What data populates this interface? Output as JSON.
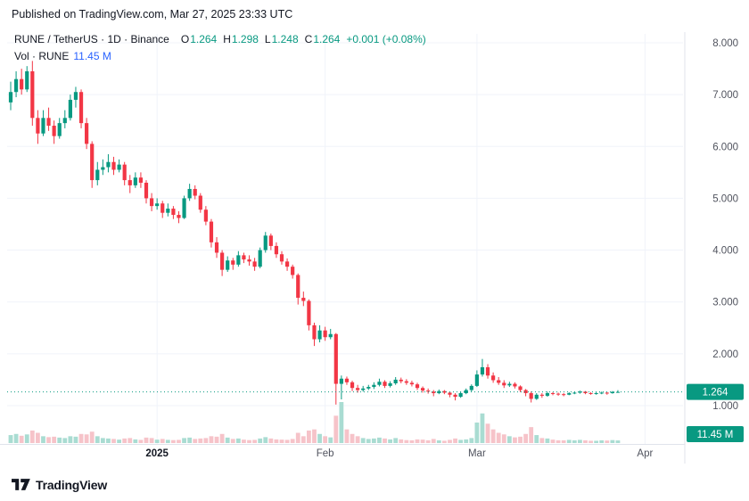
{
  "header": {
    "published": "Published on TradingView.com, Mar 27, 2025 23:33 UTC"
  },
  "legend": {
    "symbol": "RUNE / TetherUS · 1D · Binance",
    "ohlc": [
      {
        "label": "O",
        "value": "1.264"
      },
      {
        "label": "H",
        "value": "1.298"
      },
      {
        "label": "L",
        "value": "1.248"
      },
      {
        "label": "C",
        "value": "1.264"
      }
    ],
    "change": "+0.001 (+0.08%)",
    "vol_label": "Vol · RUNE",
    "vol_value": "11.45 M"
  },
  "axes": {
    "y_ticks": [
      "8.000",
      "7.000",
      "6.000",
      "5.000",
      "4.000",
      "3.000",
      "2.000",
      "1.000"
    ],
    "x_ticks": [
      {
        "label": "2025",
        "day": 27
      },
      {
        "label": "Feb",
        "day": 58
      },
      {
        "label": "Mar",
        "day": 86
      },
      {
        "label": "Apr",
        "day": 117
      }
    ]
  },
  "badges": {
    "price": "1.264",
    "volume": "11.45 M"
  },
  "footer": {
    "brand": "TradingView"
  },
  "colors": {
    "up": "#089981",
    "down": "#f23645",
    "vol_up": "#a9dcd2",
    "vol_down": "#f6c3c9",
    "accent": "#089981",
    "text": "#131722",
    "muted": "#50535e",
    "grid": "#f0f3fa",
    "axis_line": "#e0e3eb",
    "vol_text": "#2962ff",
    "badge_text": "#ffffff"
  },
  "chart_data": {
    "type": "candlestick",
    "title": "RUNE / TetherUS 1D Binance",
    "interval": "1D",
    "start_date": "2024-12-05",
    "end_date": "2025-03-27",
    "last_price": 1.264,
    "y_range": [
      1.0,
      8.0
    ],
    "volume_max_m": 180,
    "grid": true,
    "columns": [
      "open",
      "high",
      "low",
      "close",
      "volume_m"
    ],
    "candles": [
      [
        6.85,
        7.25,
        6.7,
        7.05,
        35
      ],
      [
        7.05,
        7.45,
        6.95,
        7.3,
        40
      ],
      [
        7.3,
        7.5,
        7.0,
        7.1,
        32
      ],
      [
        7.1,
        7.55,
        7.05,
        7.45,
        38
      ],
      [
        7.45,
        7.65,
        6.4,
        6.55,
        55
      ],
      [
        6.55,
        6.7,
        6.05,
        6.25,
        45
      ],
      [
        6.25,
        6.7,
        6.2,
        6.55,
        30
      ],
      [
        6.55,
        6.75,
        6.3,
        6.4,
        26
      ],
      [
        6.4,
        6.5,
        6.05,
        6.2,
        28
      ],
      [
        6.2,
        6.55,
        6.15,
        6.45,
        24
      ],
      [
        6.45,
        6.7,
        6.35,
        6.55,
        22
      ],
      [
        6.55,
        7.0,
        6.5,
        6.9,
        30
      ],
      [
        6.9,
        7.15,
        6.75,
        7.05,
        28
      ],
      [
        7.05,
        7.1,
        6.35,
        6.45,
        40
      ],
      [
        6.45,
        6.55,
        5.95,
        6.05,
        38
      ],
      [
        6.05,
        6.1,
        5.2,
        5.35,
        50
      ],
      [
        5.35,
        5.7,
        5.25,
        5.55,
        30
      ],
      [
        5.55,
        5.75,
        5.45,
        5.6,
        22
      ],
      [
        5.6,
        5.85,
        5.5,
        5.7,
        20
      ],
      [
        5.7,
        5.8,
        5.45,
        5.55,
        18
      ],
      [
        5.55,
        5.75,
        5.5,
        5.65,
        15
      ],
      [
        5.65,
        5.7,
        5.25,
        5.35,
        20
      ],
      [
        5.35,
        5.45,
        5.1,
        5.25,
        22
      ],
      [
        5.25,
        5.5,
        5.2,
        5.4,
        16
      ],
      [
        5.4,
        5.5,
        5.2,
        5.3,
        14
      ],
      [
        5.3,
        5.35,
        4.9,
        5.0,
        24
      ],
      [
        5.0,
        5.1,
        4.75,
        4.85,
        22
      ],
      [
        4.85,
        5.0,
        4.78,
        4.9,
        15
      ],
      [
        4.9,
        4.95,
        4.62,
        4.72,
        18
      ],
      [
        4.72,
        4.9,
        4.65,
        4.8,
        14
      ],
      [
        4.8,
        4.85,
        4.6,
        4.68,
        13
      ],
      [
        4.68,
        4.75,
        4.52,
        4.62,
        14
      ],
      [
        4.62,
        5.05,
        4.6,
        5.0,
        22
      ],
      [
        5.0,
        5.28,
        4.95,
        5.18,
        24
      ],
      [
        5.18,
        5.25,
        4.98,
        5.05,
        18
      ],
      [
        5.05,
        5.1,
        4.72,
        4.78,
        20
      ],
      [
        4.78,
        4.85,
        4.48,
        4.55,
        22
      ],
      [
        4.55,
        4.6,
        4.05,
        4.15,
        30
      ],
      [
        4.15,
        4.25,
        3.85,
        3.95,
        28
      ],
      [
        3.95,
        4.0,
        3.5,
        3.62,
        40
      ],
      [
        3.62,
        3.88,
        3.58,
        3.8,
        24
      ],
      [
        3.8,
        3.85,
        3.62,
        3.72,
        18
      ],
      [
        3.72,
        3.98,
        3.68,
        3.9,
        20
      ],
      [
        3.9,
        3.95,
        3.75,
        3.82,
        15
      ],
      [
        3.82,
        3.9,
        3.7,
        3.78,
        13
      ],
      [
        3.78,
        3.85,
        3.6,
        3.68,
        14
      ],
      [
        3.68,
        4.05,
        3.65,
        4.0,
        20
      ],
      [
        4.0,
        4.35,
        3.95,
        4.28,
        26
      ],
      [
        4.28,
        4.32,
        4.0,
        4.08,
        20
      ],
      [
        4.08,
        4.15,
        3.85,
        3.92,
        16
      ],
      [
        3.92,
        3.98,
        3.72,
        3.78,
        15
      ],
      [
        3.78,
        3.84,
        3.6,
        3.68,
        14
      ],
      [
        3.68,
        3.72,
        3.45,
        3.52,
        18
      ],
      [
        3.52,
        3.55,
        2.95,
        3.08,
        45
      ],
      [
        3.08,
        3.2,
        2.92,
        3.02,
        30
      ],
      [
        3.02,
        3.05,
        2.45,
        2.55,
        55
      ],
      [
        2.55,
        2.6,
        2.15,
        2.28,
        60
      ],
      [
        2.28,
        2.55,
        2.22,
        2.45,
        40
      ],
      [
        2.45,
        2.52,
        2.25,
        2.32,
        30
      ],
      [
        2.32,
        2.48,
        2.28,
        2.38,
        25
      ],
      [
        2.38,
        2.4,
        1.02,
        1.42,
        120
      ],
      [
        1.42,
        1.58,
        1.12,
        1.52,
        180
      ],
      [
        1.52,
        1.56,
        1.4,
        1.45,
        60
      ],
      [
        1.45,
        1.48,
        1.28,
        1.34,
        40
      ],
      [
        1.34,
        1.4,
        1.25,
        1.3,
        30
      ],
      [
        1.3,
        1.38,
        1.27,
        1.33,
        22
      ],
      [
        1.33,
        1.4,
        1.3,
        1.36,
        18
      ],
      [
        1.36,
        1.45,
        1.32,
        1.4,
        20
      ],
      [
        1.4,
        1.52,
        1.37,
        1.46,
        24
      ],
      [
        1.46,
        1.49,
        1.34,
        1.38,
        20
      ],
      [
        1.38,
        1.47,
        1.35,
        1.43,
        16
      ],
      [
        1.43,
        1.55,
        1.4,
        1.5,
        22
      ],
      [
        1.5,
        1.54,
        1.43,
        1.47,
        16
      ],
      [
        1.47,
        1.51,
        1.4,
        1.44,
        13
      ],
      [
        1.44,
        1.48,
        1.37,
        1.41,
        12
      ],
      [
        1.41,
        1.44,
        1.3,
        1.34,
        16
      ],
      [
        1.34,
        1.37,
        1.25,
        1.29,
        15
      ],
      [
        1.29,
        1.33,
        1.23,
        1.27,
        12
      ],
      [
        1.27,
        1.3,
        1.18,
        1.24,
        18
      ],
      [
        1.24,
        1.31,
        1.22,
        1.28,
        12
      ],
      [
        1.28,
        1.3,
        1.22,
        1.25,
        10
      ],
      [
        1.25,
        1.27,
        1.16,
        1.21,
        14
      ],
      [
        1.21,
        1.24,
        1.1,
        1.17,
        20
      ],
      [
        1.17,
        1.27,
        1.15,
        1.24,
        14
      ],
      [
        1.24,
        1.33,
        1.22,
        1.3,
        16
      ],
      [
        1.3,
        1.41,
        1.27,
        1.38,
        22
      ],
      [
        1.38,
        1.68,
        1.36,
        1.6,
        90
      ],
      [
        1.6,
        1.9,
        1.56,
        1.74,
        130
      ],
      [
        1.74,
        1.8,
        1.52,
        1.58,
        85
      ],
      [
        1.58,
        1.64,
        1.44,
        1.49,
        60
      ],
      [
        1.49,
        1.55,
        1.4,
        1.44,
        45
      ],
      [
        1.44,
        1.49,
        1.34,
        1.39,
        38
      ],
      [
        1.39,
        1.46,
        1.36,
        1.42,
        30
      ],
      [
        1.42,
        1.45,
        1.33,
        1.37,
        25
      ],
      [
        1.37,
        1.39,
        1.26,
        1.3,
        28
      ],
      [
        1.3,
        1.32,
        1.18,
        1.24,
        40
      ],
      [
        1.24,
        1.27,
        1.06,
        1.13,
        70
      ],
      [
        1.13,
        1.24,
        1.11,
        1.21,
        35
      ],
      [
        1.21,
        1.24,
        1.15,
        1.19,
        22
      ],
      [
        1.19,
        1.27,
        1.17,
        1.24,
        20
      ],
      [
        1.24,
        1.26,
        1.2,
        1.23,
        15
      ],
      [
        1.23,
        1.25,
        1.19,
        1.22,
        12
      ],
      [
        1.22,
        1.24,
        1.18,
        1.21,
        12
      ],
      [
        1.21,
        1.26,
        1.2,
        1.24,
        14
      ],
      [
        1.24,
        1.27,
        1.22,
        1.25,
        12
      ],
      [
        1.25,
        1.29,
        1.23,
        1.27,
        14
      ],
      [
        1.27,
        1.28,
        1.22,
        1.24,
        12
      ],
      [
        1.24,
        1.26,
        1.21,
        1.23,
        10
      ],
      [
        1.23,
        1.26,
        1.21,
        1.24,
        10
      ],
      [
        1.24,
        1.27,
        1.22,
        1.25,
        12
      ],
      [
        1.25,
        1.26,
        1.21,
        1.24,
        11
      ],
      [
        1.24,
        1.28,
        1.23,
        1.264,
        13
      ],
      [
        1.264,
        1.298,
        1.248,
        1.264,
        11.45
      ]
    ]
  }
}
